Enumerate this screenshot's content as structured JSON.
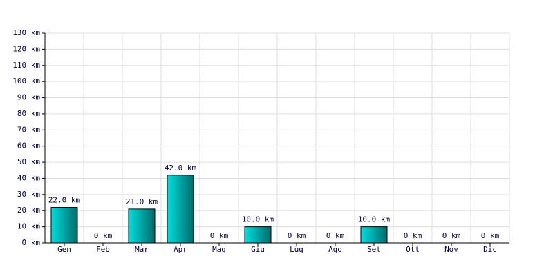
{
  "chart_data": {
    "type": "bar",
    "categories": [
      "Gen",
      "Feb",
      "Mar",
      "Apr",
      "Mag",
      "Giu",
      "Lug",
      "Ago",
      "Set",
      "Ott",
      "Nov",
      "Dic"
    ],
    "values": [
      22,
      0,
      21,
      42,
      0,
      10,
      0,
      0,
      10,
      0,
      0,
      0
    ],
    "value_labels": [
      "22.0 km",
      "0 km",
      "21.0 km",
      "42.0 km",
      "0 km",
      "10.0 km",
      "0 km",
      "0 km",
      "10.0 km",
      "0 km",
      "0 km",
      "0 km"
    ],
    "color": "#00dede",
    "ylim": [
      0,
      130
    ],
    "yticks": [
      {
        "value": 0,
        "label": "0 km"
      },
      {
        "value": 10,
        "label": "10 km"
      },
      {
        "value": 20,
        "label": "20 km"
      },
      {
        "value": 30,
        "label": "30 km"
      },
      {
        "value": 40,
        "label": "40 km"
      },
      {
        "value": 50,
        "label": "50 km"
      },
      {
        "value": 60,
        "label": "60 km"
      },
      {
        "value": 70,
        "label": "70 km"
      },
      {
        "value": 80,
        "label": "80 km"
      },
      {
        "value": 90,
        "label": "90 km"
      },
      {
        "value": 100,
        "label": "100 km"
      },
      {
        "value": 110,
        "label": "110 km"
      },
      {
        "value": 120,
        "label": "120 km"
      },
      {
        "value": 130,
        "label": "130 km"
      }
    ],
    "grid": true
  }
}
